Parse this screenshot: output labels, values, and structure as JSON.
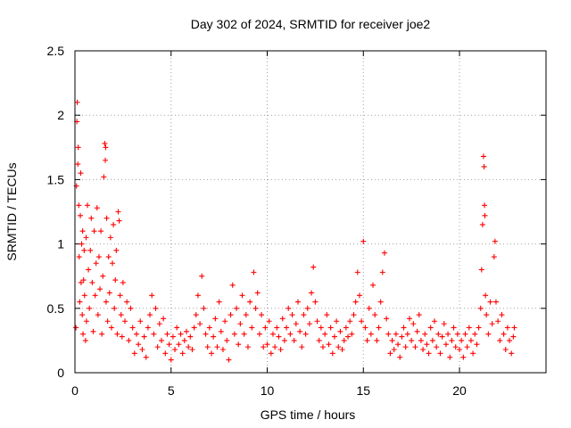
{
  "chart_data": {
    "type": "scatter",
    "title": "Day 302 of 2024, SRMTID for receiver joe2",
    "xlabel": "GPS time / hours",
    "ylabel": "SRMTID / TECUs",
    "xlim": [
      0,
      24.5
    ],
    "ylim": [
      0,
      2.5
    ],
    "xticks": [
      0,
      5,
      10,
      15,
      20
    ],
    "xtick_labels": [
      "0",
      "5",
      "10",
      "15",
      "20"
    ],
    "yticks": [
      0,
      0.5,
      1,
      1.5,
      2,
      2.5
    ],
    "ytick_labels": [
      "0",
      "0.5",
      "1",
      "1.5",
      "2",
      "2.5"
    ],
    "grid": true,
    "marker": "+",
    "series": [
      {
        "name": "SRMTID",
        "color": "#ff0000",
        "points": [
          [
            0.05,
            0.35
          ],
          [
            0.08,
            1.45
          ],
          [
            0.1,
            1.95
          ],
          [
            0.12,
            2.1
          ],
          [
            0.15,
            1.62
          ],
          [
            0.17,
            1.75
          ],
          [
            0.2,
            1.3
          ],
          [
            0.22,
            0.9
          ],
          [
            0.25,
            0.55
          ],
          [
            0.28,
            1.22
          ],
          [
            0.3,
            1.55
          ],
          [
            0.32,
            0.7
          ],
          [
            0.35,
            1.0
          ],
          [
            0.38,
            0.45
          ],
          [
            0.4,
            1.1
          ],
          [
            0.42,
            0.3
          ],
          [
            0.45,
            0.72
          ],
          [
            0.48,
            0.95
          ],
          [
            0.5,
            0.6
          ],
          [
            0.55,
            0.25
          ],
          [
            0.58,
            1.05
          ],
          [
            0.6,
            0.4
          ],
          [
            0.65,
            1.3
          ],
          [
            0.7,
            0.8
          ],
          [
            0.75,
            0.5
          ],
          [
            0.8,
            0.95
          ],
          [
            0.85,
            1.2
          ],
          [
            0.9,
            0.7
          ],
          [
            0.95,
            0.32
          ],
          [
            1.0,
            1.1
          ],
          [
            1.05,
            0.6
          ],
          [
            1.1,
            0.85
          ],
          [
            1.15,
            1.28
          ],
          [
            1.2,
            0.45
          ],
          [
            1.25,
            0.9
          ],
          [
            1.3,
            0.65
          ],
          [
            1.35,
            1.1
          ],
          [
            1.4,
            0.3
          ],
          [
            1.45,
            0.75
          ],
          [
            1.5,
            1.52
          ],
          [
            1.55,
            1.78
          ],
          [
            1.58,
            1.65
          ],
          [
            1.6,
            1.75
          ],
          [
            1.62,
            0.55
          ],
          [
            1.65,
            1.2
          ],
          [
            1.7,
            0.4
          ],
          [
            1.75,
            0.9
          ],
          [
            1.8,
            0.62
          ],
          [
            1.85,
            1.05
          ],
          [
            1.9,
            0.35
          ],
          [
            1.95,
            0.85
          ],
          [
            2.0,
            1.15
          ],
          [
            2.05,
            0.5
          ],
          [
            2.1,
            0.72
          ],
          [
            2.15,
            0.95
          ],
          [
            2.2,
            0.3
          ],
          [
            2.25,
            1.25
          ],
          [
            2.3,
            1.18
          ],
          [
            2.35,
            0.6
          ],
          [
            2.4,
            0.45
          ],
          [
            2.45,
            0.28
          ],
          [
            2.5,
            0.7
          ],
          [
            2.6,
            0.4
          ],
          [
            2.7,
            0.55
          ],
          [
            2.8,
            0.25
          ],
          [
            2.9,
            0.5
          ],
          [
            3.0,
            0.35
          ],
          [
            3.1,
            0.15
          ],
          [
            3.2,
            0.3
          ],
          [
            3.3,
            0.22
          ],
          [
            3.4,
            0.4
          ],
          [
            3.5,
            0.18
          ],
          [
            3.6,
            0.28
          ],
          [
            3.7,
            0.12
          ],
          [
            3.8,
            0.35
          ],
          [
            3.9,
            0.45
          ],
          [
            4.0,
            0.6
          ],
          [
            4.1,
            0.3
          ],
          [
            4.2,
            0.5
          ],
          [
            4.3,
            0.2
          ],
          [
            4.4,
            0.38
          ],
          [
            4.5,
            0.25
          ],
          [
            4.6,
            0.42
          ],
          [
            4.7,
            0.15
          ],
          [
            4.8,
            0.3
          ],
          [
            4.9,
            0.22
          ],
          [
            5.0,
            0.1
          ],
          [
            5.1,
            0.28
          ],
          [
            5.2,
            0.18
          ],
          [
            5.3,
            0.35
          ],
          [
            5.4,
            0.22
          ],
          [
            5.5,
            0.3
          ],
          [
            5.6,
            0.15
          ],
          [
            5.7,
            0.25
          ],
          [
            5.8,
            0.32
          ],
          [
            5.9,
            0.2
          ],
          [
            6.0,
            0.28
          ],
          [
            6.1,
            0.18
          ],
          [
            6.2,
            0.35
          ],
          [
            6.3,
            0.45
          ],
          [
            6.4,
            0.6
          ],
          [
            6.5,
            0.38
          ],
          [
            6.6,
            0.75
          ],
          [
            6.7,
            0.5
          ],
          [
            6.8,
            0.3
          ],
          [
            6.9,
            0.2
          ],
          [
            7.0,
            0.35
          ],
          [
            7.1,
            0.15
          ],
          [
            7.2,
            0.28
          ],
          [
            7.3,
            0.42
          ],
          [
            7.4,
            0.2
          ],
          [
            7.5,
            0.55
          ],
          [
            7.6,
            0.32
          ],
          [
            7.7,
            0.18
          ],
          [
            7.8,
            0.4
          ],
          [
            7.9,
            0.25
          ],
          [
            8.0,
            0.1
          ],
          [
            8.1,
            0.45
          ],
          [
            8.2,
            0.68
          ],
          [
            8.3,
            0.3
          ],
          [
            8.4,
            0.5
          ],
          [
            8.5,
            0.22
          ],
          [
            8.6,
            0.38
          ],
          [
            8.7,
            0.6
          ],
          [
            8.8,
            0.3
          ],
          [
            8.9,
            0.45
          ],
          [
            9.0,
            0.2
          ],
          [
            9.1,
            0.55
          ],
          [
            9.2,
            0.35
          ],
          [
            9.3,
            0.78
          ],
          [
            9.4,
            0.5
          ],
          [
            9.5,
            0.62
          ],
          [
            9.6,
            0.3
          ],
          [
            9.7,
            0.45
          ],
          [
            9.8,
            0.2
          ],
          [
            9.9,
            0.35
          ],
          [
            10.0,
            0.22
          ],
          [
            10.1,
            0.4
          ],
          [
            10.2,
            0.15
          ],
          [
            10.3,
            0.3
          ],
          [
            10.4,
            0.2
          ],
          [
            10.5,
            0.35
          ],
          [
            10.6,
            0.28
          ],
          [
            10.7,
            0.18
          ],
          [
            10.8,
            0.42
          ],
          [
            10.9,
            0.25
          ],
          [
            11.0,
            0.35
          ],
          [
            11.1,
            0.5
          ],
          [
            11.2,
            0.3
          ],
          [
            11.3,
            0.45
          ],
          [
            11.4,
            0.25
          ],
          [
            11.5,
            0.38
          ],
          [
            11.6,
            0.55
          ],
          [
            11.7,
            0.32
          ],
          [
            11.8,
            0.2
          ],
          [
            11.9,
            0.45
          ],
          [
            12.0,
            0.3
          ],
          [
            12.1,
            0.5
          ],
          [
            12.2,
            0.38
          ],
          [
            12.3,
            0.62
          ],
          [
            12.4,
            0.82
          ],
          [
            12.5,
            0.55
          ],
          [
            12.6,
            0.4
          ],
          [
            12.7,
            0.25
          ],
          [
            12.8,
            0.35
          ],
          [
            12.9,
            0.2
          ],
          [
            13.0,
            0.3
          ],
          [
            13.1,
            0.45
          ],
          [
            13.2,
            0.22
          ],
          [
            13.3,
            0.35
          ],
          [
            13.4,
            0.15
          ],
          [
            13.5,
            0.28
          ],
          [
            13.6,
            0.4
          ],
          [
            13.7,
            0.2
          ],
          [
            13.8,
            0.32
          ],
          [
            13.9,
            0.18
          ],
          [
            14.0,
            0.25
          ],
          [
            14.1,
            0.35
          ],
          [
            14.2,
            0.28
          ],
          [
            14.3,
            0.4
          ],
          [
            14.4,
            0.3
          ],
          [
            14.5,
            0.45
          ],
          [
            14.6,
            0.55
          ],
          [
            14.7,
            0.78
          ],
          [
            14.8,
            0.6
          ],
          [
            14.9,
            0.4
          ],
          [
            15.0,
            1.02
          ],
          [
            15.1,
            0.35
          ],
          [
            15.2,
            0.25
          ],
          [
            15.3,
            0.5
          ],
          [
            15.4,
            0.3
          ],
          [
            15.5,
            0.68
          ],
          [
            15.6,
            0.45
          ],
          [
            15.7,
            0.25
          ],
          [
            15.8,
            0.35
          ],
          [
            15.9,
            0.55
          ],
          [
            16.0,
            0.78
          ],
          [
            16.1,
            0.93
          ],
          [
            16.2,
            0.42
          ],
          [
            16.3,
            0.3
          ],
          [
            16.4,
            0.15
          ],
          [
            16.5,
            0.25
          ],
          [
            16.6,
            0.18
          ],
          [
            16.7,
            0.3
          ],
          [
            16.8,
            0.22
          ],
          [
            16.9,
            0.12
          ],
          [
            17.0,
            0.28
          ],
          [
            17.1,
            0.35
          ],
          [
            17.2,
            0.2
          ],
          [
            17.3,
            0.3
          ],
          [
            17.4,
            0.42
          ],
          [
            17.5,
            0.25
          ],
          [
            17.6,
            0.38
          ],
          [
            17.7,
            0.2
          ],
          [
            17.8,
            0.32
          ],
          [
            17.9,
            0.45
          ],
          [
            18.0,
            0.25
          ],
          [
            18.1,
            0.18
          ],
          [
            18.2,
            0.3
          ],
          [
            18.3,
            0.22
          ],
          [
            18.4,
            0.15
          ],
          [
            18.5,
            0.35
          ],
          [
            18.6,
            0.25
          ],
          [
            18.7,
            0.4
          ],
          [
            18.8,
            0.2
          ],
          [
            18.9,
            0.3
          ],
          [
            19.0,
            0.15
          ],
          [
            19.1,
            0.28
          ],
          [
            19.2,
            0.38
          ],
          [
            19.3,
            0.22
          ],
          [
            19.4,
            0.3
          ],
          [
            19.5,
            0.12
          ],
          [
            19.6,
            0.25
          ],
          [
            19.7,
            0.35
          ],
          [
            19.8,
            0.2
          ],
          [
            19.9,
            0.3
          ],
          [
            20.0,
            0.18
          ],
          [
            20.1,
            0.25
          ],
          [
            20.2,
            0.12
          ],
          [
            20.3,
            0.3
          ],
          [
            20.4,
            0.2
          ],
          [
            20.5,
            0.35
          ],
          [
            20.6,
            0.25
          ],
          [
            20.7,
            0.15
          ],
          [
            20.8,
            0.3
          ],
          [
            20.9,
            0.22
          ],
          [
            21.0,
            0.35
          ],
          [
            21.1,
            0.5
          ],
          [
            21.15,
            0.8
          ],
          [
            21.2,
            1.15
          ],
          [
            21.25,
            1.68
          ],
          [
            21.28,
            1.6
          ],
          [
            21.3,
            1.3
          ],
          [
            21.32,
            1.22
          ],
          [
            21.35,
            0.6
          ],
          [
            21.4,
            0.45
          ],
          [
            21.5,
            0.3
          ],
          [
            21.6,
            0.55
          ],
          [
            21.7,
            0.38
          ],
          [
            21.8,
            0.9
          ],
          [
            21.85,
            1.02
          ],
          [
            21.9,
            0.55
          ],
          [
            22.0,
            0.4
          ],
          [
            22.1,
            0.25
          ],
          [
            22.2,
            0.45
          ],
          [
            22.3,
            0.3
          ],
          [
            22.4,
            0.18
          ],
          [
            22.5,
            0.35
          ],
          [
            22.6,
            0.25
          ],
          [
            22.7,
            0.15
          ],
          [
            22.8,
            0.28
          ],
          [
            22.85,
            0.35
          ]
        ]
      }
    ]
  }
}
